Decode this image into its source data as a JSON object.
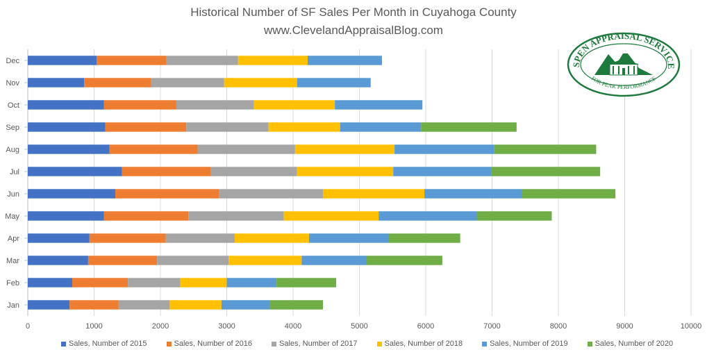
{
  "chart_data": {
    "type": "bar",
    "orientation": "horizontal",
    "stacked": true,
    "title": "Historical Number of SF Sales Per Month in Cuyahoga County",
    "subtitle": "www.ClevelandAppraisalBlog.com",
    "categories": [
      "Jan",
      "Feb",
      "Mar",
      "Apr",
      "May",
      "Jun",
      "Jul",
      "Aug",
      "Sep",
      "Oct",
      "Nov",
      "Dec"
    ],
    "xlim": [
      0,
      10000
    ],
    "xticks": [
      "0",
      "1000",
      "2000",
      "3000",
      "4000",
      "5000",
      "6000",
      "7000",
      "8000",
      "9000",
      "10000"
    ],
    "grid": true,
    "legend_position": "bottom",
    "series": [
      {
        "name": "Sales, Number of 2015",
        "color": "#4472C4",
        "values": [
          630,
          670,
          910,
          930,
          1150,
          1320,
          1420,
          1230,
          1170,
          1150,
          850,
          1040
        ]
      },
      {
        "name": "Sales, Number of 2016",
        "color": "#ED7D31",
        "values": [
          740,
          840,
          1040,
          1150,
          1270,
          1560,
          1340,
          1330,
          1220,
          1090,
          1010,
          1050
        ]
      },
      {
        "name": "Sales, Number of 2017",
        "color": "#A5A5A5",
        "values": [
          770,
          790,
          1080,
          1040,
          1440,
          1570,
          1300,
          1470,
          1240,
          1170,
          1100,
          1080
        ]
      },
      {
        "name": "Sales, Number of 2018",
        "color": "#FFC000",
        "values": [
          780,
          700,
          1100,
          1120,
          1430,
          1530,
          1450,
          1500,
          1080,
          1220,
          1100,
          1050
        ]
      },
      {
        "name": "Sales, Number of 2019",
        "color": "#5B9BD5",
        "values": [
          730,
          750,
          980,
          1200,
          1480,
          1470,
          1480,
          1500,
          1220,
          1320,
          1110,
          1120
        ]
      },
      {
        "name": "Sales, Number of 2020",
        "color": "#70AD47",
        "values": [
          800,
          900,
          1140,
          1080,
          1130,
          1410,
          1640,
          1540,
          1440,
          0,
          0,
          0
        ]
      }
    ]
  },
  "logo": {
    "top_text": "ASPEN APPRAISAL SERVICES",
    "bottom_text": "FOR PEAK PERFORMANCE",
    "color": "#1E7A3C"
  }
}
